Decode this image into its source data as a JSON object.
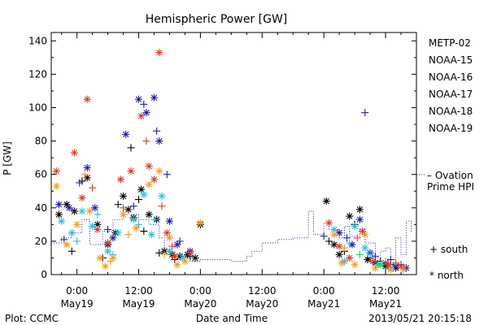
{
  "chart_data": {
    "type": "scatter",
    "title": "Hemispheric Power [GW]",
    "xlabel": "Date and Time",
    "ylabel": "P [GW]",
    "x_unit": "hours from 2013-05-19 00:00 UT",
    "xlim": [
      -5,
      66
    ],
    "ylim": [
      0,
      145
    ],
    "yticks": [
      0,
      20,
      40,
      60,
      80,
      100,
      120,
      140
    ],
    "xticks": [
      {
        "x": 0,
        "line1": "0:00",
        "line2": "May19"
      },
      {
        "x": 12,
        "line1": "12:00",
        "line2": "May19"
      },
      {
        "x": 24,
        "line1": "0:00",
        "line2": "May20"
      },
      {
        "x": 36,
        "line1": "12:00",
        "line2": "May20"
      },
      {
        "x": 48,
        "line1": "0:00",
        "line2": "May21"
      },
      {
        "x": 60,
        "line1": "12:00",
        "line2": "May21"
      }
    ],
    "legend": [
      {
        "name": "METP-02",
        "color": "#000000"
      },
      {
        "name": "NOAA-15",
        "color": "#1a1ab4"
      },
      {
        "name": "NOAA-16",
        "color": "#22c0e8"
      },
      {
        "name": "NOAA-17",
        "color": "#22cc55"
      },
      {
        "name": "NOAA-18",
        "color": "#f59a1a"
      },
      {
        "name": "NOAA-19",
        "color": "#e03a1e"
      }
    ],
    "ovation_label": [
      "– Ovation",
      "Prime HPI"
    ],
    "ovation_color": "#1a1ab4",
    "marker_key": {
      "south": "+ south",
      "north": "* north"
    },
    "ovation_series": [
      [
        -5,
        19
      ],
      [
        -3,
        19
      ],
      [
        -3,
        22
      ],
      [
        -1,
        22
      ],
      [
        -1,
        25
      ],
      [
        1,
        25
      ],
      [
        1,
        33
      ],
      [
        2.5,
        33
      ],
      [
        2.5,
        18
      ],
      [
        5,
        18
      ],
      [
        5,
        26
      ],
      [
        7,
        26
      ],
      [
        7,
        33
      ],
      [
        9,
        33
      ],
      [
        9,
        36
      ],
      [
        12,
        36
      ],
      [
        12,
        33
      ],
      [
        14,
        33
      ],
      [
        14,
        30
      ],
      [
        16,
        30
      ],
      [
        16,
        22
      ],
      [
        17,
        22
      ],
      [
        17,
        14
      ],
      [
        19,
        14
      ],
      [
        19,
        10
      ],
      [
        22,
        10
      ],
      [
        22,
        8
      ],
      [
        24,
        8
      ],
      [
        24,
        9
      ],
      [
        30,
        9
      ],
      [
        30,
        8
      ],
      [
        33,
        8
      ],
      [
        33,
        11
      ],
      [
        34,
        11
      ],
      [
        34,
        14
      ],
      [
        36,
        14
      ],
      [
        36,
        19
      ],
      [
        39,
        19
      ],
      [
        39,
        21
      ],
      [
        42,
        21
      ],
      [
        42,
        22
      ],
      [
        45,
        22
      ],
      [
        45,
        38
      ],
      [
        46,
        38
      ],
      [
        46,
        24
      ],
      [
        48,
        24
      ],
      [
        48,
        31
      ],
      [
        49,
        31
      ],
      [
        49,
        27
      ],
      [
        51,
        27
      ],
      [
        51,
        22
      ],
      [
        52,
        22
      ],
      [
        52,
        29
      ],
      [
        53,
        29
      ],
      [
        53,
        23
      ],
      [
        55,
        23
      ],
      [
        55,
        27
      ],
      [
        56,
        27
      ],
      [
        56,
        19
      ],
      [
        58,
        19
      ],
      [
        58,
        10
      ],
      [
        59,
        10
      ],
      [
        59,
        14
      ],
      [
        60,
        14
      ],
      [
        60,
        16
      ],
      [
        61,
        16
      ],
      [
        61,
        9
      ],
      [
        62,
        9
      ],
      [
        62,
        22
      ],
      [
        63,
        22
      ],
      [
        63,
        12
      ],
      [
        64,
        12
      ],
      [
        64,
        32
      ],
      [
        65,
        32
      ],
      [
        65,
        25
      ]
    ],
    "series": [
      {
        "name": "METP-02",
        "color": "#000000",
        "points": [
          {
            "x": -3.5,
            "y": 36,
            "m": "n"
          },
          {
            "x": -2,
            "y": 42,
            "m": "n"
          },
          {
            "x": -0.5,
            "y": 38,
            "m": "n"
          },
          {
            "x": 2,
            "y": 58,
            "m": "n"
          },
          {
            "x": 4,
            "y": 30,
            "m": "n"
          },
          {
            "x": 6,
            "y": 18,
            "m": "n"
          },
          {
            "x": 7.5,
            "y": 25,
            "m": "n"
          },
          {
            "x": 9,
            "y": 47,
            "m": "n"
          },
          {
            "x": 10,
            "y": 39,
            "m": "n"
          },
          {
            "x": 11,
            "y": 34,
            "m": "n"
          },
          {
            "x": 12.5,
            "y": 51,
            "m": "n"
          },
          {
            "x": 14,
            "y": 36,
            "m": "n"
          },
          {
            "x": 15.5,
            "y": 33,
            "m": "n"
          },
          {
            "x": 17,
            "y": 14,
            "m": "n"
          },
          {
            "x": 18.5,
            "y": 12,
            "m": "n"
          },
          {
            "x": 20,
            "y": 11,
            "m": "n"
          },
          {
            "x": 21.5,
            "y": 12,
            "m": "n"
          },
          {
            "x": 23,
            "y": 10,
            "m": "n"
          },
          {
            "x": 24,
            "y": 30,
            "m": "n"
          },
          {
            "x": 48.5,
            "y": 44,
            "m": "n"
          },
          {
            "x": 50,
            "y": 18,
            "m": "n"
          },
          {
            "x": 51,
            "y": 12,
            "m": "n"
          },
          {
            "x": 53,
            "y": 35,
            "m": "n"
          },
          {
            "x": 55,
            "y": 39,
            "m": "n"
          },
          {
            "x": 56.5,
            "y": 9,
            "m": "n"
          },
          {
            "x": 58,
            "y": 7,
            "m": "n"
          },
          {
            "x": 60,
            "y": 5,
            "m": "n"
          },
          {
            "x": 62,
            "y": 4,
            "m": "n"
          },
          {
            "x": -1,
            "y": 14,
            "m": "s"
          },
          {
            "x": 1,
            "y": 56,
            "m": "s"
          },
          {
            "x": 5,
            "y": 10,
            "m": "s"
          },
          {
            "x": 8,
            "y": 42,
            "m": "s"
          },
          {
            "x": 10.5,
            "y": 76,
            "m": "s"
          },
          {
            "x": 12,
            "y": 45,
            "m": "s"
          },
          {
            "x": 13,
            "y": 26,
            "m": "s"
          },
          {
            "x": 16,
            "y": 13,
            "m": "s"
          },
          {
            "x": 19,
            "y": 9,
            "m": "s"
          },
          {
            "x": 22,
            "y": 11,
            "m": "s"
          },
          {
            "x": 49,
            "y": 20,
            "m": "s"
          },
          {
            "x": 52,
            "y": 14,
            "m": "s"
          },
          {
            "x": 54,
            "y": 30,
            "m": "s"
          },
          {
            "x": 57,
            "y": 10,
            "m": "s"
          },
          {
            "x": 59,
            "y": 8,
            "m": "s"
          },
          {
            "x": 61,
            "y": 6,
            "m": "s"
          }
        ]
      },
      {
        "name": "NOAA-15",
        "color": "#1a1ab4",
        "points": [
          {
            "x": -3.5,
            "y": 42,
            "m": "n"
          },
          {
            "x": -1.5,
            "y": 40,
            "m": "n"
          },
          {
            "x": 2,
            "y": 64,
            "m": "n"
          },
          {
            "x": 3.5,
            "y": 40,
            "m": "n"
          },
          {
            "x": 7,
            "y": 22,
            "m": "n"
          },
          {
            "x": 9.5,
            "y": 84,
            "m": "n"
          },
          {
            "x": 12,
            "y": 105,
            "m": "n"
          },
          {
            "x": 13.5,
            "y": 97,
            "m": "n"
          },
          {
            "x": 15,
            "y": 106,
            "m": "n"
          },
          {
            "x": 16,
            "y": 80,
            "m": "n"
          },
          {
            "x": 18,
            "y": 32,
            "m": "n"
          },
          {
            "x": 19.5,
            "y": 18,
            "m": "n"
          },
          {
            "x": 22,
            "y": 14,
            "m": "n"
          },
          {
            "x": 51,
            "y": 25,
            "m": "n"
          },
          {
            "x": 53.5,
            "y": 18,
            "m": "n"
          },
          {
            "x": 55,
            "y": 33,
            "m": "n"
          },
          {
            "x": 57,
            "y": 13,
            "m": "n"
          },
          {
            "x": 60,
            "y": 7,
            "m": "n"
          },
          {
            "x": 62,
            "y": 5,
            "m": "n"
          },
          {
            "x": 64,
            "y": 4,
            "m": "n"
          },
          {
            "x": -2.5,
            "y": 21,
            "m": "s"
          },
          {
            "x": 0.5,
            "y": 55,
            "m": "s"
          },
          {
            "x": 6,
            "y": 27,
            "m": "s"
          },
          {
            "x": 11,
            "y": 41,
            "m": "s"
          },
          {
            "x": 13,
            "y": 102,
            "m": "s"
          },
          {
            "x": 15.5,
            "y": 86,
            "m": "s"
          },
          {
            "x": 17.5,
            "y": 60,
            "m": "s"
          },
          {
            "x": 20,
            "y": 20,
            "m": "s"
          },
          {
            "x": 48,
            "y": 23,
            "m": "s"
          },
          {
            "x": 52.5,
            "y": 22,
            "m": "s"
          },
          {
            "x": 56,
            "y": 97,
            "m": "s"
          },
          {
            "x": 58,
            "y": 11,
            "m": "s"
          },
          {
            "x": 61,
            "y": 9,
            "m": "s"
          },
          {
            "x": 63,
            "y": 6,
            "m": "s"
          }
        ]
      },
      {
        "name": "NOAA-16",
        "color": "#22c0e8",
        "points": [
          {
            "x": -3,
            "y": 32,
            "m": "n"
          },
          {
            "x": -1,
            "y": 25,
            "m": "n"
          },
          {
            "x": 1,
            "y": 38,
            "m": "n"
          },
          {
            "x": 3,
            "y": 29,
            "m": "n"
          },
          {
            "x": 6,
            "y": 14,
            "m": "n"
          },
          {
            "x": 8,
            "y": 25,
            "m": "n"
          },
          {
            "x": 11,
            "y": 33,
            "m": "n"
          },
          {
            "x": 13,
            "y": 48,
            "m": "n"
          },
          {
            "x": 14.5,
            "y": 24,
            "m": "n"
          },
          {
            "x": 16.5,
            "y": 47,
            "m": "n"
          },
          {
            "x": 18,
            "y": 14,
            "m": "n"
          },
          {
            "x": 20.5,
            "y": 10,
            "m": "n"
          },
          {
            "x": 50,
            "y": 27,
            "m": "n"
          },
          {
            "x": 52,
            "y": 8,
            "m": "n"
          },
          {
            "x": 54,
            "y": 29,
            "m": "n"
          },
          {
            "x": 56,
            "y": 16,
            "m": "n"
          },
          {
            "x": 58.5,
            "y": 6,
            "m": "n"
          },
          {
            "x": 61,
            "y": 4,
            "m": "n"
          },
          {
            "x": 0,
            "y": 20,
            "m": "s"
          },
          {
            "x": 4,
            "y": 36,
            "m": "s"
          },
          {
            "x": 7,
            "y": 12,
            "m": "s"
          },
          {
            "x": 12,
            "y": 30,
            "m": "s"
          },
          {
            "x": 15,
            "y": 33,
            "m": "s"
          },
          {
            "x": 19,
            "y": 12,
            "m": "s"
          },
          {
            "x": 53,
            "y": 19,
            "m": "s"
          },
          {
            "x": 57,
            "y": 12,
            "m": "s"
          }
        ]
      },
      {
        "name": "NOAA-17",
        "color": "#22cc55",
        "points": [
          {
            "x": 55,
            "y": 12,
            "m": "s"
          },
          {
            "x": 59,
            "y": 6,
            "m": "n"
          }
        ]
      },
      {
        "name": "NOAA-18",
        "color": "#f59a1a",
        "points": [
          {
            "x": -4,
            "y": 53,
            "m": "n"
          },
          {
            "x": -2,
            "y": 18,
            "m": "n"
          },
          {
            "x": 0,
            "y": 30,
            "m": "n"
          },
          {
            "x": 2.5,
            "y": 38,
            "m": "n"
          },
          {
            "x": 4.5,
            "y": 10,
            "m": "n"
          },
          {
            "x": 5.5,
            "y": 5,
            "m": "n"
          },
          {
            "x": 7,
            "y": 10,
            "m": "n"
          },
          {
            "x": 9,
            "y": 36,
            "m": "n"
          },
          {
            "x": 11.5,
            "y": 28,
            "m": "n"
          },
          {
            "x": 14,
            "y": 54,
            "m": "n"
          },
          {
            "x": 16,
            "y": 62,
            "m": "n"
          },
          {
            "x": 18,
            "y": 22,
            "m": "n"
          },
          {
            "x": 19.5,
            "y": 6,
            "m": "n"
          },
          {
            "x": 21,
            "y": 8,
            "m": "n"
          },
          {
            "x": 24,
            "y": 31,
            "m": "n"
          },
          {
            "x": 50,
            "y": 24,
            "m": "n"
          },
          {
            "x": 51.5,
            "y": 7,
            "m": "n"
          },
          {
            "x": 54,
            "y": 6,
            "m": "n"
          },
          {
            "x": 56,
            "y": 24,
            "m": "n"
          },
          {
            "x": 58,
            "y": 4,
            "m": "n"
          },
          {
            "x": 61,
            "y": 3,
            "m": "n"
          },
          {
            "x": 63.5,
            "y": 3,
            "m": "n"
          },
          {
            "x": 1.5,
            "y": 60,
            "m": "s"
          },
          {
            "x": 6.5,
            "y": 8,
            "m": "s"
          },
          {
            "x": 10,
            "y": 24,
            "m": "s"
          },
          {
            "x": 17,
            "y": 12,
            "m": "s"
          },
          {
            "x": 52,
            "y": 16,
            "m": "s"
          },
          {
            "x": 60,
            "y": 8,
            "m": "s"
          }
        ]
      },
      {
        "name": "NOAA-19",
        "color": "#e03a1e",
        "points": [
          {
            "x": -4,
            "y": 62,
            "m": "n"
          },
          {
            "x": -0.5,
            "y": 73,
            "m": "n"
          },
          {
            "x": 1,
            "y": 46,
            "m": "n"
          },
          {
            "x": 2,
            "y": 105,
            "m": "n"
          },
          {
            "x": 4,
            "y": 27,
            "m": "n"
          },
          {
            "x": 6,
            "y": 19,
            "m": "n"
          },
          {
            "x": 8.5,
            "y": 57,
            "m": "n"
          },
          {
            "x": 10.5,
            "y": 62,
            "m": "n"
          },
          {
            "x": 12.5,
            "y": 95,
            "m": "n"
          },
          {
            "x": 14,
            "y": 65,
            "m": "n"
          },
          {
            "x": 15,
            "y": 57,
            "m": "n"
          },
          {
            "x": 16,
            "y": 133,
            "m": "n"
          },
          {
            "x": 17.5,
            "y": 25,
            "m": "n"
          },
          {
            "x": 19,
            "y": 11,
            "m": "n"
          },
          {
            "x": 22,
            "y": 13,
            "m": "n"
          },
          {
            "x": 49,
            "y": 31,
            "m": "n"
          },
          {
            "x": 51,
            "y": 17,
            "m": "n"
          },
          {
            "x": 53,
            "y": 10,
            "m": "n"
          },
          {
            "x": 55.5,
            "y": 26,
            "m": "n"
          },
          {
            "x": 57.5,
            "y": 8,
            "m": "n"
          },
          {
            "x": 60.5,
            "y": 6,
            "m": "n"
          },
          {
            "x": 63,
            "y": 5,
            "m": "n"
          },
          {
            "x": 3,
            "y": 52,
            "m": "s"
          },
          {
            "x": 9,
            "y": 40,
            "m": "s"
          },
          {
            "x": 13.5,
            "y": 80,
            "m": "s"
          },
          {
            "x": 16.5,
            "y": 41,
            "m": "s"
          },
          {
            "x": 18.5,
            "y": 17,
            "m": "s"
          },
          {
            "x": 54.5,
            "y": 22,
            "m": "s"
          },
          {
            "x": 62,
            "y": 7,
            "m": "s"
          }
        ]
      }
    ]
  },
  "footer": {
    "left": "Plot: CCMC",
    "center": "Date and Time",
    "right": "2013/05/21  20:15:18"
  }
}
